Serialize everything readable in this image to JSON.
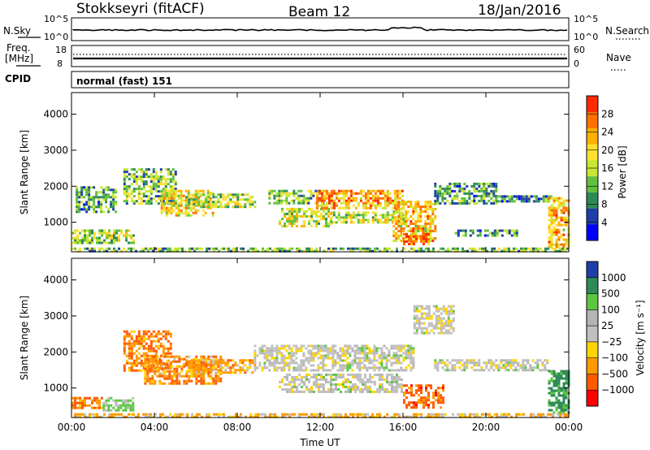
{
  "header": {
    "station": "Stokkseyri (fitACF)",
    "beam": "Beam 12",
    "date": "18/Jan/2016"
  },
  "panels": {
    "nsky_label": "N.Sky",
    "nsearch_label": "N.Search",
    "freq_label": "Freq.",
    "freq_unit": "[MHz]",
    "nave_label": "Nave",
    "cpid_label": "CPID",
    "cpid_value": "normal (fast) 151",
    "noise_ticks_left": [
      "10^5",
      "10^0"
    ],
    "noise_ticks_right": [
      "10^5",
      "10^0"
    ],
    "freq_ticks_left": [
      "18",
      "8"
    ],
    "freq_ticks_right": [
      "60",
      "0"
    ]
  },
  "colors": {
    "power": [
      "#0000ff",
      "#1f3fa8",
      "#2e8b57",
      "#5fbf3f",
      "#c8e632",
      "#ffe030",
      "#ffb000",
      "#ff7000",
      "#ff2a00"
    ],
    "velocity": [
      "#ff0000",
      "#ff5a00",
      "#ff9900",
      "#ffd400",
      "#c0c0c0",
      "#b5b5b5",
      "#5cc640",
      "#2e8b57",
      "#1f3fa8"
    ]
  },
  "chart_data": [
    {
      "type": "heatmap",
      "name": "Power",
      "xlabel": "Time UT",
      "ylabel": "Slant Range [km]",
      "colorbar_label": "Power [dB]",
      "colorbar_ticks": [
        "28",
        "24",
        "20",
        "16",
        "12",
        "8",
        "4"
      ],
      "x_ticks": [
        "00:00",
        "04:00",
        "08:00",
        "12:00",
        "16:00",
        "20:00",
        "00:00"
      ],
      "y_ticks": [
        "4000",
        "3000",
        "2000",
        "1000"
      ],
      "xlim": [
        0,
        24
      ],
      "ylim": [
        180,
        4600
      ],
      "clim": [
        0,
        30
      ],
      "regions": [
        {
          "t0": 0.0,
          "t1": 3.0,
          "r0": 400,
          "r1": 800,
          "value": 14
        },
        {
          "t0": 0.2,
          "t1": 2.2,
          "r0": 1300,
          "r1": 2000,
          "value": 10
        },
        {
          "t0": 2.5,
          "t1": 5.0,
          "r0": 1500,
          "r1": 2500,
          "value": 12
        },
        {
          "t0": 4.3,
          "t1": 6.8,
          "r0": 1200,
          "r1": 1900,
          "value": 18
        },
        {
          "t0": 5.5,
          "t1": 8.8,
          "r0": 1450,
          "r1": 1800,
          "value": 14
        },
        {
          "t0": 9.5,
          "t1": 12.2,
          "r0": 1500,
          "r1": 1900,
          "value": 12
        },
        {
          "t0": 10.0,
          "t1": 12.5,
          "r0": 900,
          "r1": 1400,
          "value": 16
        },
        {
          "t0": 11.8,
          "t1": 16.0,
          "r0": 1400,
          "r1": 1900,
          "value": 22
        },
        {
          "t0": 12.5,
          "t1": 16.2,
          "r0": 1000,
          "r1": 1300,
          "value": 16
        },
        {
          "t0": 15.5,
          "t1": 17.6,
          "r0": 450,
          "r1": 1600,
          "value": 20
        },
        {
          "t0": 16.0,
          "t1": 17.2,
          "r0": 400,
          "r1": 700,
          "value": 26
        },
        {
          "t0": 17.5,
          "t1": 20.5,
          "r0": 1500,
          "r1": 2100,
          "value": 10
        },
        {
          "t0": 18.5,
          "t1": 21.5,
          "r0": 600,
          "r1": 800,
          "value": 10
        },
        {
          "t0": 20.5,
          "t1": 23.2,
          "r0": 1550,
          "r1": 1750,
          "value": 8
        },
        {
          "t0": 23.0,
          "t1": 24.0,
          "r0": 300,
          "r1": 1700,
          "value": 20
        },
        {
          "t0": 0.0,
          "t1": 24.0,
          "r0": 200,
          "r1": 300,
          "value": 12
        }
      ]
    },
    {
      "type": "heatmap",
      "name": "Velocity",
      "xlabel": "Time UT",
      "ylabel": "Slant Range [km]",
      "colorbar_label": "Velocity [m s⁻¹]",
      "colorbar_ticks": [
        "1000",
        "500",
        "100",
        "25",
        "−25",
        "−100",
        "−500",
        "−1000"
      ],
      "x_ticks": [
        "00:00",
        "04:00",
        "08:00",
        "12:00",
        "16:00",
        "20:00",
        "00:00"
      ],
      "y_ticks": [
        "4000",
        "3000",
        "2000",
        "1000"
      ],
      "xlim": [
        0,
        24
      ],
      "ylim": [
        180,
        4600
      ],
      "regions": [
        {
          "t0": 0.0,
          "t1": 1.5,
          "r0": 450,
          "r1": 750,
          "value": -300
        },
        {
          "t0": 1.5,
          "t1": 3.0,
          "r0": 400,
          "r1": 750,
          "value": 80
        },
        {
          "t0": 2.5,
          "t1": 4.8,
          "r0": 1500,
          "r1": 2600,
          "value": -250
        },
        {
          "t0": 3.5,
          "t1": 7.2,
          "r0": 1100,
          "r1": 1900,
          "value": -200
        },
        {
          "t0": 5.5,
          "t1": 8.8,
          "r0": 1450,
          "r1": 1800,
          "value": -150
        },
        {
          "t0": 8.8,
          "t1": 16.5,
          "r0": 1500,
          "r1": 2200,
          "value": 0
        },
        {
          "t0": 10.0,
          "t1": 16.0,
          "r0": 900,
          "r1": 1400,
          "value": 0
        },
        {
          "t0": 16.0,
          "t1": 18.0,
          "r0": 450,
          "r1": 1100,
          "value": -400
        },
        {
          "t0": 16.5,
          "t1": 18.5,
          "r0": 2500,
          "r1": 3300,
          "value": 0
        },
        {
          "t0": 17.5,
          "t1": 23.0,
          "r0": 1500,
          "r1": 1800,
          "value": 0
        },
        {
          "t0": 23.0,
          "t1": 24.0,
          "r0": 300,
          "r1": 1500,
          "value": 300
        },
        {
          "t0": 0.0,
          "t1": 24.0,
          "r0": 200,
          "r1": 300,
          "value": -80
        }
      ]
    }
  ]
}
